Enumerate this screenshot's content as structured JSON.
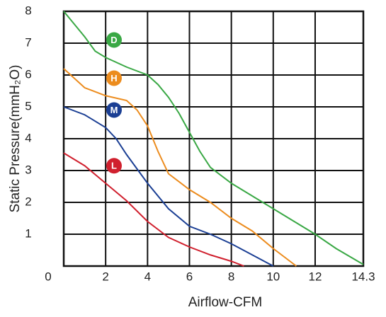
{
  "chart_data": {
    "type": "line",
    "x_label": "Airflow-CFM",
    "y_label": "Static Pressure(mmH₂O)",
    "xlim": [
      0,
      14.3
    ],
    "xticks": [
      0,
      2,
      4,
      6,
      8,
      10,
      12,
      14.3
    ],
    "ylim": [
      0,
      8
    ],
    "yticks": [
      1,
      2,
      3,
      4,
      5,
      6,
      7,
      8
    ],
    "grid": true,
    "series": [
      {
        "name": "D",
        "color": "#3aa845",
        "x": [
          0,
          1,
          1.5,
          2,
          3,
          4,
          4.5,
          5,
          5.5,
          6,
          6.5,
          7,
          8,
          9,
          10,
          11,
          12,
          13,
          14.3
        ],
        "values": [
          8,
          7.2,
          6.75,
          6.55,
          6.25,
          6.0,
          5.7,
          5.3,
          4.8,
          4.2,
          3.6,
          3.1,
          2.6,
          2.2,
          1.8,
          1.4,
          1.0,
          0.55,
          0.05
        ]
      },
      {
        "name": "H",
        "color": "#ec8c1e",
        "x": [
          0,
          0.5,
          1,
          2,
          3,
          3.5,
          4,
          4.5,
          5,
          6,
          7,
          8,
          9,
          10,
          11.1
        ],
        "values": [
          6.2,
          5.9,
          5.6,
          5.35,
          5.2,
          4.9,
          4.4,
          3.6,
          2.9,
          2.4,
          2.0,
          1.5,
          1.1,
          0.55,
          0
        ]
      },
      {
        "name": "M",
        "color": "#1b3f94",
        "x": [
          0,
          1,
          2,
          2.5,
          3,
          4,
          5,
          6,
          7,
          8,
          9,
          10
        ],
        "values": [
          5.0,
          4.75,
          4.35,
          4.0,
          3.5,
          2.6,
          1.8,
          1.25,
          1.0,
          0.7,
          0.35,
          0
        ]
      },
      {
        "name": "L",
        "color": "#d0202e",
        "x": [
          0,
          1,
          2,
          3,
          4,
          5,
          6,
          7,
          8,
          8.6
        ],
        "values": [
          3.55,
          3.15,
          2.6,
          2.05,
          1.4,
          0.9,
          0.6,
          0.35,
          0.15,
          0
        ]
      }
    ]
  }
}
